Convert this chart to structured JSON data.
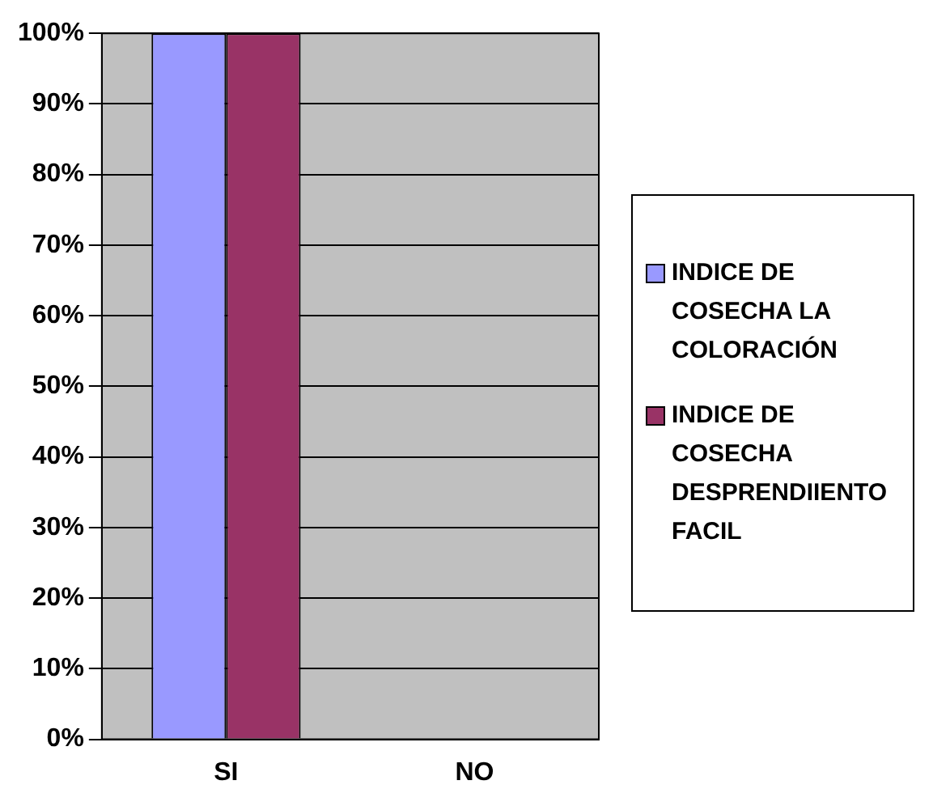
{
  "chart_data": {
    "type": "bar",
    "categories": [
      "SI",
      "NO"
    ],
    "series": [
      {
        "name": "INDICE DE COSECHA LA COLORACIÓN",
        "color": "#9999ff",
        "values": [
          100,
          0
        ]
      },
      {
        "name": "INDICE DE COSECHA DESPRENDIIENTO FACIL",
        "color": "#993366",
        "values": [
          100,
          0
        ]
      }
    ],
    "ylim": [
      0,
      100
    ],
    "yticks": [
      {
        "value": 0,
        "label": "0%"
      },
      {
        "value": 10,
        "label": "10%"
      },
      {
        "value": 20,
        "label": "20%"
      },
      {
        "value": 30,
        "label": "30%"
      },
      {
        "value": 40,
        "label": "40%"
      },
      {
        "value": 50,
        "label": "50%"
      },
      {
        "value": 60,
        "label": "60%"
      },
      {
        "value": 70,
        "label": "70%"
      },
      {
        "value": 80,
        "label": "80%"
      },
      {
        "value": 90,
        "label": "90%"
      },
      {
        "value": 100,
        "label": "100%"
      }
    ],
    "grid": "y",
    "legend": "right"
  }
}
